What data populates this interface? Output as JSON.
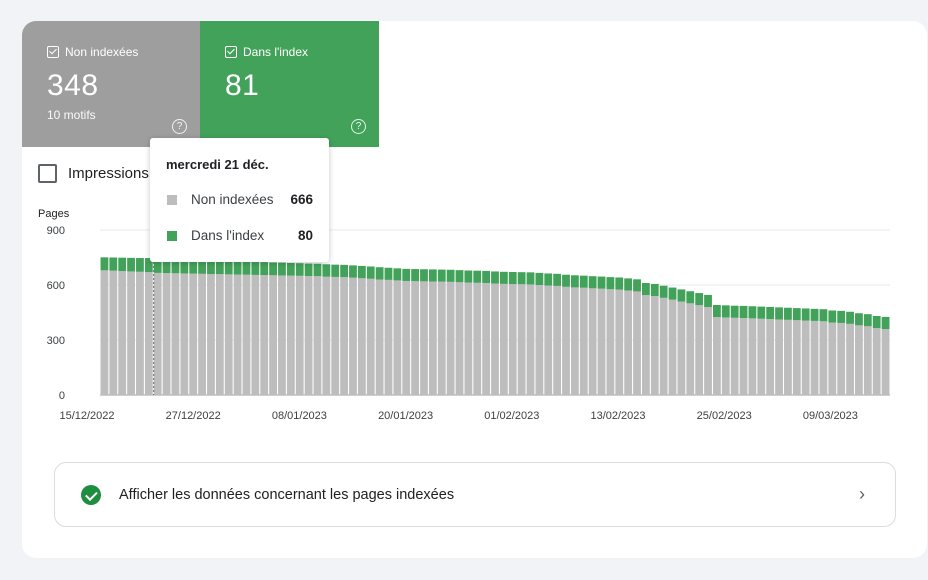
{
  "tiles": {
    "not_indexed": {
      "label": "Non indexées",
      "value": "348",
      "sub": "10 motifs",
      "help": "?"
    },
    "indexed": {
      "label": "Dans l'index",
      "value": "81",
      "help": "?"
    }
  },
  "impressions": {
    "label": "Impressions"
  },
  "tooltip": {
    "date": "mercredi 21 déc.",
    "rows": [
      {
        "label": "Non indexées",
        "value": "666"
      },
      {
        "label": "Dans l'index",
        "value": "80"
      }
    ]
  },
  "cta": {
    "text": "Afficher les données concernant les pages indexées",
    "arrow": "›"
  },
  "colors": {
    "not_indexed": "#bdbdbd",
    "indexed": "#43a25a",
    "gray_tile": "#9e9e9e"
  },
  "chart_data": {
    "type": "bar",
    "stacked": true,
    "ylabel": "Pages",
    "ylim": [
      0,
      900
    ],
    "yticks": [
      0,
      300,
      600,
      900
    ],
    "xticks": [
      "15/12/2022",
      "27/12/2022",
      "08/01/2023",
      "20/01/2023",
      "01/02/2023",
      "13/02/2023",
      "25/02/2023",
      "09/03/2023"
    ],
    "x_start": "15/12/2022",
    "highlight_index": 6,
    "series": [
      {
        "name": "Non indexées",
        "values": [
          680,
          678,
          676,
          674,
          672,
          670,
          666,
          665,
          664,
          663,
          662,
          661,
          660,
          659,
          658,
          657,
          656,
          655,
          654,
          653,
          652,
          651,
          650,
          649,
          648,
          645,
          644,
          643,
          640,
          637,
          634,
          630,
          628,
          625,
          622,
          621,
          620,
          619,
          618,
          617,
          615,
          613,
          612,
          611,
          608,
          606,
          605,
          604,
          603,
          600,
          597,
          595,
          590,
          587,
          585,
          582,
          580,
          577,
          575,
          570,
          565,
          545,
          540,
          530,
          520,
          510,
          500,
          490,
          480,
          425,
          423,
          421,
          420,
          418,
          416,
          414,
          412,
          410,
          408,
          406,
          404,
          402,
          395,
          393,
          388,
          380,
          375,
          365,
          360
        ]
      },
      {
        "name": "Dans l'index",
        "values": [
          71,
          72,
          73,
          74,
          75,
          77,
          80,
          80,
          79,
          78,
          77,
          76,
          75,
          74,
          74,
          73,
          72,
          72,
          71,
          70,
          70,
          69,
          69,
          68,
          68,
          68,
          67,
          67,
          67,
          67,
          67,
          67,
          66,
          66,
          66,
          66,
          66,
          66,
          66,
          66,
          66,
          66,
          66,
          66,
          66,
          66,
          66,
          66,
          66,
          66,
          66,
          66,
          66,
          66,
          66,
          66,
          66,
          66,
          66,
          66,
          66,
          66,
          66,
          66,
          66,
          66,
          66,
          66,
          66,
          66,
          66,
          66,
          66,
          66,
          66,
          66,
          66,
          66,
          66,
          66,
          66,
          66,
          66,
          66,
          66,
          66,
          66,
          66,
          66
        ]
      }
    ]
  }
}
